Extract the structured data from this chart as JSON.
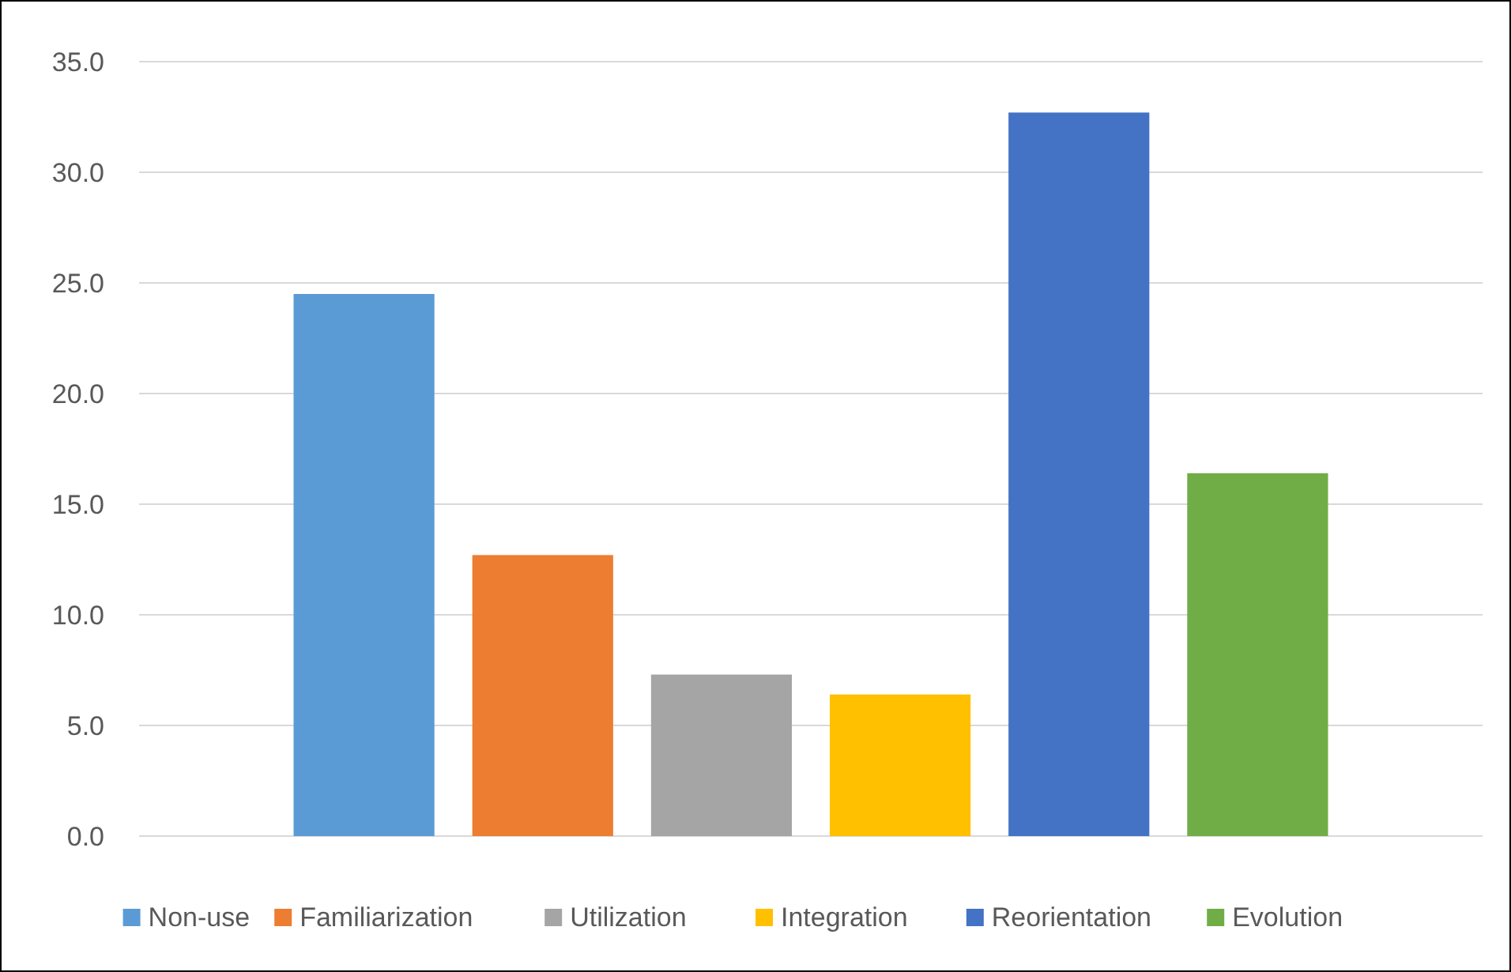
{
  "chart_data": {
    "type": "bar",
    "categories": [
      null
    ],
    "series": [
      {
        "name": "Non-use",
        "color": "#5b9bd5",
        "values": [
          24.5
        ]
      },
      {
        "name": "Familiarization",
        "color": "#ed7d31",
        "values": [
          12.7
        ]
      },
      {
        "name": "Utilization",
        "color": "#a5a5a5",
        "values": [
          7.3
        ]
      },
      {
        "name": "Integration",
        "color": "#ffc000",
        "values": [
          6.4
        ]
      },
      {
        "name": "Reorientation",
        "color": "#4472c4",
        "values": [
          32.7
        ]
      },
      {
        "name": "Evolution",
        "color": "#70ad47",
        "values": [
          16.4
        ]
      }
    ],
    "ylim": [
      0,
      35
    ],
    "yticks": [
      {
        "value": 0,
        "label": "0.0"
      },
      {
        "value": 5,
        "label": "5.0"
      },
      {
        "value": 10,
        "label": "10.0"
      },
      {
        "value": 15,
        "label": "15.0"
      },
      {
        "value": 20,
        "label": "20.0"
      },
      {
        "value": 25,
        "label": "25.0"
      },
      {
        "value": 30,
        "label": "30.0"
      },
      {
        "value": 35,
        "label": "35.0"
      }
    ],
    "grid": "y",
    "legend": "bottom"
  }
}
